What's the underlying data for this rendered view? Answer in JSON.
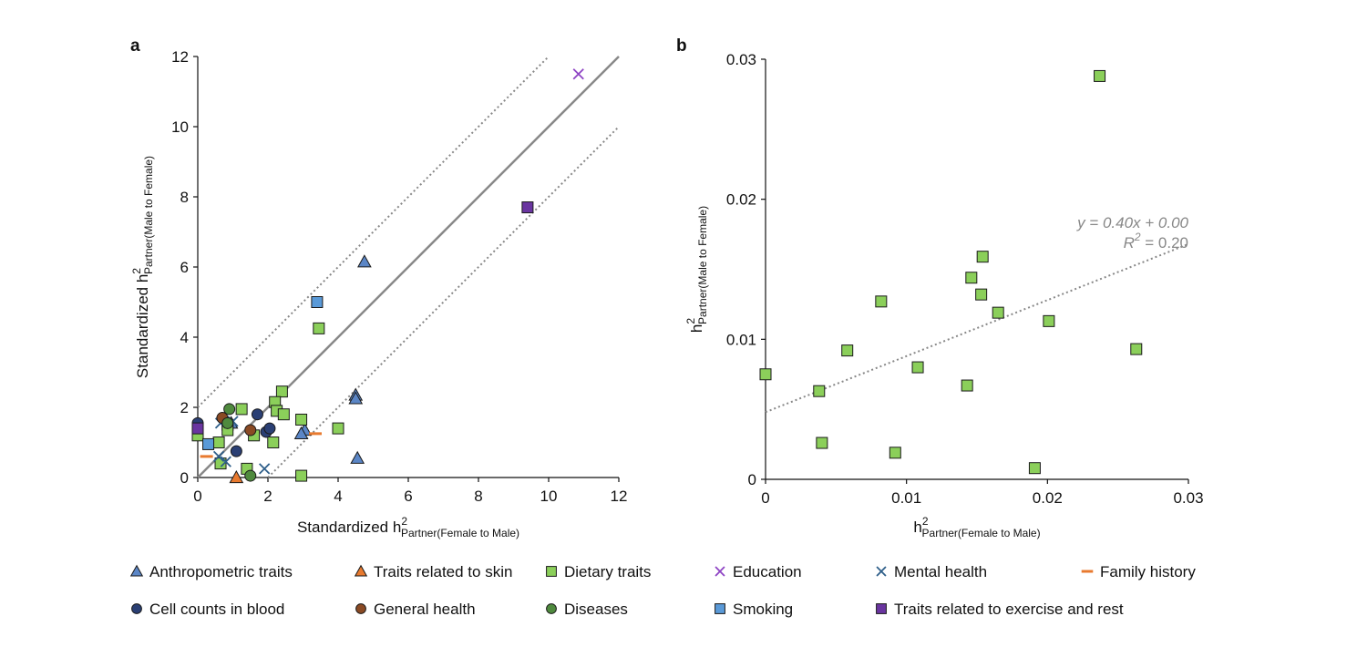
{
  "colors": {
    "anthropometric": "#5b86c6",
    "skin": "#e87a2f",
    "dietary": "#8bcf5a",
    "education": "#8e44c4",
    "mental": "#2f5f8a",
    "family": "#e87a2f",
    "blood": "#2a3f74",
    "general": "#8a4a24",
    "diseases": "#4f8a3e",
    "smoking": "#5a9ad8",
    "exercise": "#6a35a0",
    "solid_line": "#888888",
    "dotted_line": "#888888"
  },
  "legend": [
    {
      "key": "anthropometric",
      "label": "Anthropometric traits",
      "marker": "triangle"
    },
    {
      "key": "skin",
      "label": "Traits related to skin",
      "marker": "triangle"
    },
    {
      "key": "dietary",
      "label": "Dietary traits",
      "marker": "square"
    },
    {
      "key": "education",
      "label": "Education",
      "marker": "x"
    },
    {
      "key": "mental",
      "label": "Mental health",
      "marker": "x"
    },
    {
      "key": "family",
      "label": "Family history",
      "marker": "dash"
    },
    {
      "key": "blood",
      "label": "Cell counts in blood",
      "marker": "circle"
    },
    {
      "key": "general",
      "label": "General health",
      "marker": "circle"
    },
    {
      "key": "diseases",
      "label": "Diseases",
      "marker": "circle"
    },
    {
      "key": "smoking",
      "label": "Smoking",
      "marker": "square"
    },
    {
      "key": "exercise",
      "label": "Traits related to exercise and rest",
      "marker": "square"
    }
  ],
  "chart_data": [
    {
      "panel": "a",
      "type": "scatter",
      "xlabel_main": "Standardized h",
      "xlabel_sup": "2",
      "xlabel_sub": "Partner(Female to Male)",
      "ylabel_main": "Standardized h",
      "ylabel_sup": "2",
      "ylabel_sub": "Partner(Male to Female)",
      "xlim": [
        0,
        12
      ],
      "ylim": [
        0,
        12
      ],
      "xticks": [
        0,
        2,
        4,
        6,
        8,
        10,
        12
      ],
      "yticks": [
        0,
        2,
        4,
        6,
        8,
        10,
        12
      ],
      "xtick_labels": [
        "0",
        "2",
        "4",
        "6",
        "8",
        "10",
        "12"
      ],
      "ytick_labels": [
        "0",
        "2",
        "4",
        "6",
        "8",
        "10",
        "12"
      ],
      "lines": [
        {
          "style": "solid",
          "from": [
            0,
            0
          ],
          "to": [
            12,
            12
          ]
        },
        {
          "style": "dotted",
          "from": [
            0,
            2
          ],
          "to": [
            10,
            12
          ]
        },
        {
          "style": "dotted",
          "from": [
            2,
            0
          ],
          "to": [
            12,
            10
          ]
        }
      ],
      "series": [
        {
          "key": "anthropometric",
          "points": [
            [
              4.75,
              6.15
            ],
            [
              4.5,
              2.35
            ],
            [
              4.5,
              2.25
            ],
            [
              4.55,
              0.55
            ],
            [
              3.05,
              1.35
            ],
            [
              2.95,
              1.25
            ],
            [
              0.95,
              1.55
            ]
          ]
        },
        {
          "key": "skin",
          "points": [
            [
              1.1,
              0.0
            ]
          ]
        },
        {
          "key": "dietary",
          "points": [
            [
              3.45,
              4.25
            ],
            [
              2.4,
              2.45
            ],
            [
              2.2,
              2.15
            ],
            [
              2.25,
              1.9
            ],
            [
              2.45,
              1.8
            ],
            [
              2.95,
              1.65
            ],
            [
              4.0,
              1.4
            ],
            [
              1.25,
              1.95
            ],
            [
              0.85,
              1.5
            ],
            [
              0.85,
              1.35
            ],
            [
              1.6,
              1.2
            ],
            [
              0.6,
              1.0
            ],
            [
              2.15,
              1.0
            ],
            [
              0.0,
              1.2
            ],
            [
              1.4,
              0.25
            ],
            [
              0.65,
              0.4
            ],
            [
              2.95,
              0.05
            ]
          ]
        },
        {
          "key": "education",
          "points": [
            [
              10.85,
              11.5
            ]
          ]
        },
        {
          "key": "mental",
          "points": [
            [
              0.65,
              1.55
            ],
            [
              1.0,
              1.6
            ],
            [
              0.6,
              0.6
            ],
            [
              0.8,
              0.45
            ],
            [
              1.9,
              0.25
            ]
          ]
        },
        {
          "key": "family",
          "points": [
            [
              3.35,
              1.25
            ],
            [
              0.25,
              0.6
            ]
          ]
        },
        {
          "key": "blood",
          "points": [
            [
              0.0,
              1.55
            ],
            [
              1.7,
              1.8
            ],
            [
              1.95,
              1.3
            ],
            [
              2.05,
              1.4
            ],
            [
              1.1,
              0.75
            ]
          ]
        },
        {
          "key": "general",
          "points": [
            [
              0.7,
              1.7
            ],
            [
              1.5,
              1.35
            ]
          ]
        },
        {
          "key": "diseases",
          "points": [
            [
              0.9,
              1.95
            ],
            [
              1.5,
              0.05
            ],
            [
              0.85,
              1.55
            ]
          ]
        },
        {
          "key": "smoking",
          "points": [
            [
              3.4,
              5.0
            ],
            [
              0.3,
              0.95
            ]
          ]
        },
        {
          "key": "exercise",
          "points": [
            [
              9.4,
              7.7
            ],
            [
              0.0,
              1.4
            ]
          ]
        }
      ]
    },
    {
      "panel": "b",
      "type": "scatter",
      "xlabel_main": "h",
      "xlabel_sup": "2",
      "xlabel_sub": "Partner(Female to Male)",
      "ylabel_main": "h",
      "ylabel_sup": "2",
      "ylabel_sub": "Partner(Male to Female)",
      "xlim": [
        0,
        0.03
      ],
      "ylim": [
        0,
        0.03
      ],
      "xticks": [
        0,
        0.01,
        0.02,
        0.03
      ],
      "yticks": [
        0,
        0.01,
        0.02,
        0.03
      ],
      "xtick_labels": [
        "0",
        "0.01",
        "0.02",
        "0.03"
      ],
      "ytick_labels": [
        "0",
        "0.01",
        "0.02",
        "0.03"
      ],
      "trend": {
        "slope": 0.4,
        "intercept": 0.0048,
        "equation": "y = 0.40x + 0.00",
        "r2_label": "R",
        "r2_sup": "2",
        "r2_value": " = 0.20"
      },
      "series": [
        {
          "key": "dietary",
          "points": [
            [
              0.0237,
              0.0288
            ],
            [
              0.0154,
              0.0159
            ],
            [
              0.0146,
              0.0144
            ],
            [
              0.0153,
              0.0132
            ],
            [
              0.0082,
              0.0127
            ],
            [
              0.0165,
              0.0119
            ],
            [
              0.0201,
              0.0113
            ],
            [
              0.0263,
              0.0093
            ],
            [
              0.0058,
              0.0092
            ],
            [
              0.0108,
              0.008
            ],
            [
              0.0,
              0.0075
            ],
            [
              0.0143,
              0.0067
            ],
            [
              0.0038,
              0.0063
            ],
            [
              0.004,
              0.0026
            ],
            [
              0.0092,
              0.0019
            ],
            [
              0.0191,
              0.0008
            ]
          ]
        }
      ]
    }
  ]
}
